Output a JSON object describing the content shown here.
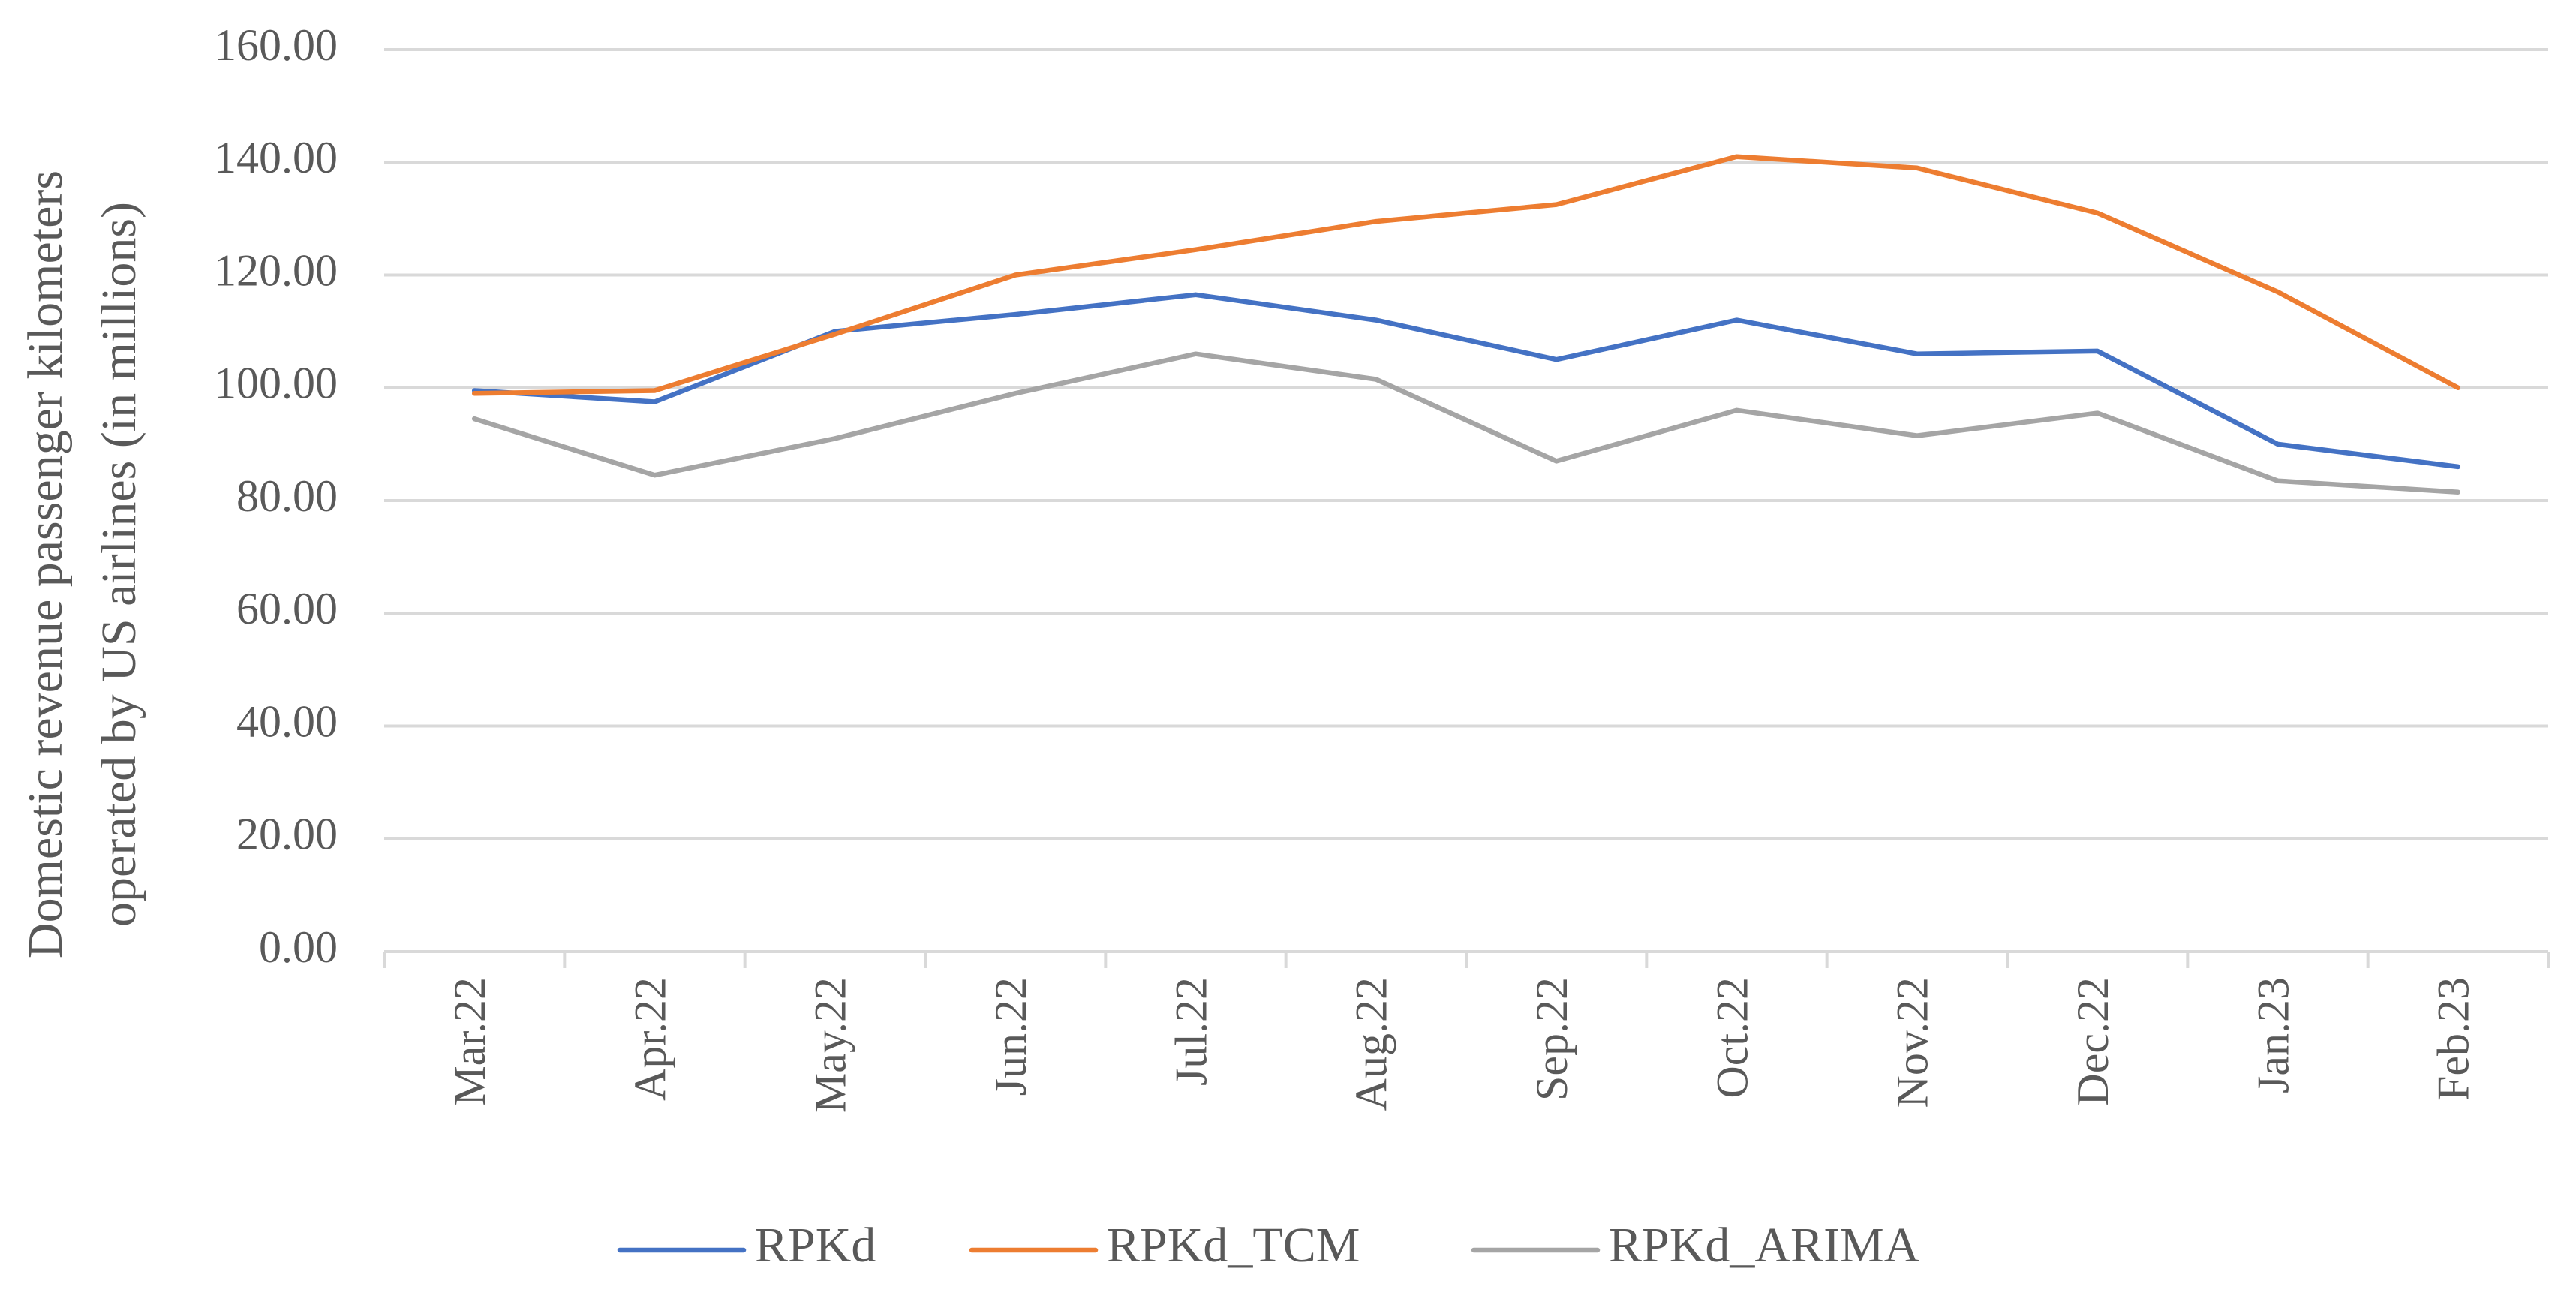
{
  "chart_data": {
    "type": "line",
    "title": "",
    "xlabel": "",
    "ylabel_lines": [
      "Domestic revenue passenger kilometers",
      "operated by US airlines (in millions)"
    ],
    "ylim": [
      0,
      160
    ],
    "yticks": [
      "0.00",
      "20.00",
      "40.00",
      "60.00",
      "80.00",
      "100.00",
      "120.00",
      "140.00",
      "160.00"
    ],
    "categories": [
      "Mar.22",
      "Apr.22",
      "May.22",
      "Jun.22",
      "Jul.22",
      "Aug.22",
      "Sep.22",
      "Oct.22",
      "Nov.22",
      "Dec.22",
      "Jan.23",
      "Feb.23"
    ],
    "grid": true,
    "legend_position": "bottom",
    "series": [
      {
        "name": "RPKd",
        "color": "#4472C4",
        "values": [
          99.5,
          97.5,
          110.0,
          113.0,
          116.5,
          112.0,
          105.0,
          112.0,
          106.0,
          106.5,
          90.0,
          86.0
        ]
      },
      {
        "name": "RPKd_TCM",
        "color": "#ED7D31",
        "values": [
          99.0,
          99.5,
          109.5,
          120.0,
          124.5,
          129.5,
          132.5,
          141.0,
          139.0,
          131.0,
          117.0,
          100.0
        ]
      },
      {
        "name": "RPKd_ARIMA",
        "color": "#A5A5A5",
        "values": [
          94.5,
          84.5,
          91.0,
          99.0,
          106.0,
          101.5,
          87.0,
          96.0,
          91.5,
          95.5,
          83.5,
          81.5
        ]
      }
    ]
  }
}
